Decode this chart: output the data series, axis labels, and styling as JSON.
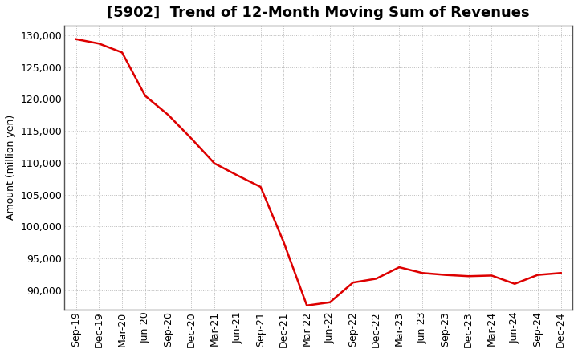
{
  "title": "[5902]  Trend of 12-Month Moving Sum of Revenues",
  "ylabel": "Amount (million yen)",
  "line_color": "#dd0000",
  "background_color": "#ffffff",
  "plot_bg_color": "#ffffff",
  "grid_color": "#bbbbbb",
  "x_labels": [
    "Sep-19",
    "Dec-19",
    "Mar-20",
    "Jun-20",
    "Sep-20",
    "Dec-20",
    "Mar-21",
    "Jun-21",
    "Sep-21",
    "Dec-21",
    "Mar-22",
    "Jun-22",
    "Sep-22",
    "Dec-22",
    "Mar-23",
    "Jun-23",
    "Sep-23",
    "Dec-23",
    "Mar-24",
    "Jun-24",
    "Sep-24",
    "Dec-24"
  ],
  "values": [
    129400,
    128700,
    127300,
    120500,
    117500,
    113800,
    109900,
    108000,
    106200,
    97500,
    87600,
    88100,
    91200,
    91800,
    93600,
    92700,
    92400,
    92200,
    92300,
    91000,
    92400,
    92700
  ],
  "ylim": [
    87000,
    131500
  ],
  "yticks": [
    90000,
    95000,
    100000,
    105000,
    110000,
    115000,
    120000,
    125000,
    130000
  ],
  "line_width": 1.8,
  "title_fontsize": 13,
  "axis_fontsize": 9,
  "tick_fontsize": 9
}
